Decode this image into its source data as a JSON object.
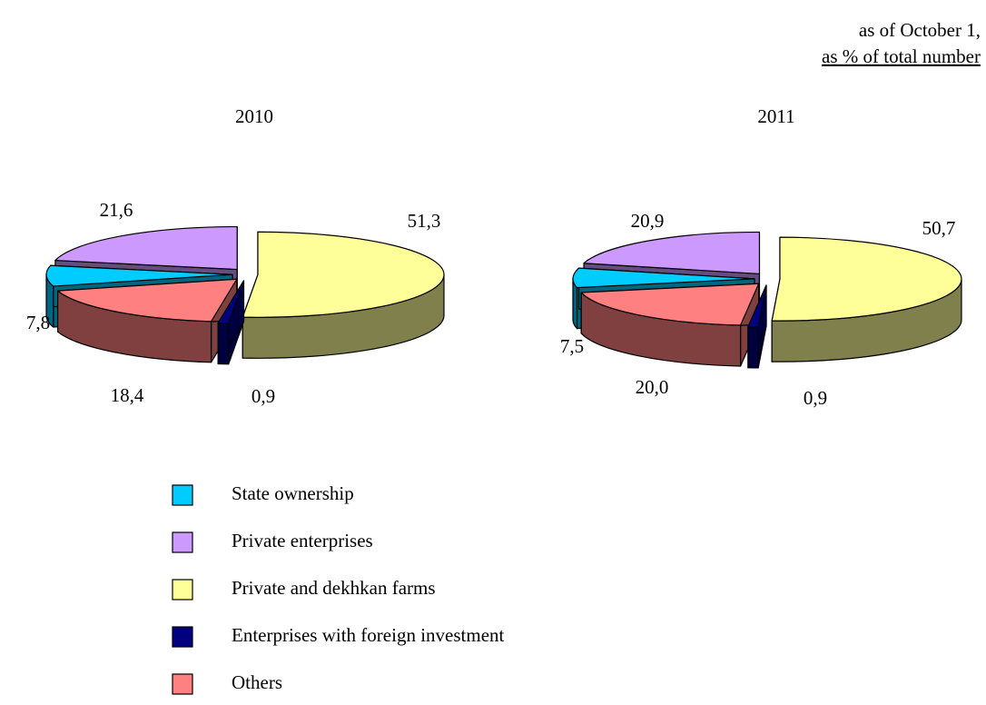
{
  "chart_data": {
    "type": "pie",
    "annotations": [
      "as of October 1,",
      "as % of total number"
    ],
    "categories": [
      "State ownership",
      "Private enterprises",
      "Private and dekhkan farms",
      "Enterprises with foreign investment",
      "Others"
    ],
    "colors": [
      "#00ccff",
      "#cc99ff",
      "#ffff99",
      "#000080",
      "#ff8080"
    ],
    "series": [
      {
        "name": "2010",
        "values": [
          7.8,
          21.6,
          51.3,
          0.9,
          18.4
        ],
        "value_labels": [
          "7,8",
          "21,6",
          "51,3",
          "0,9",
          "18,4"
        ]
      },
      {
        "name": "2011",
        "values": [
          7.5,
          20.9,
          50.7,
          0.9,
          20.0
        ],
        "value_labels": [
          "7,5",
          "20,9",
          "50,7",
          "0,9",
          "20,0"
        ]
      }
    ]
  }
}
